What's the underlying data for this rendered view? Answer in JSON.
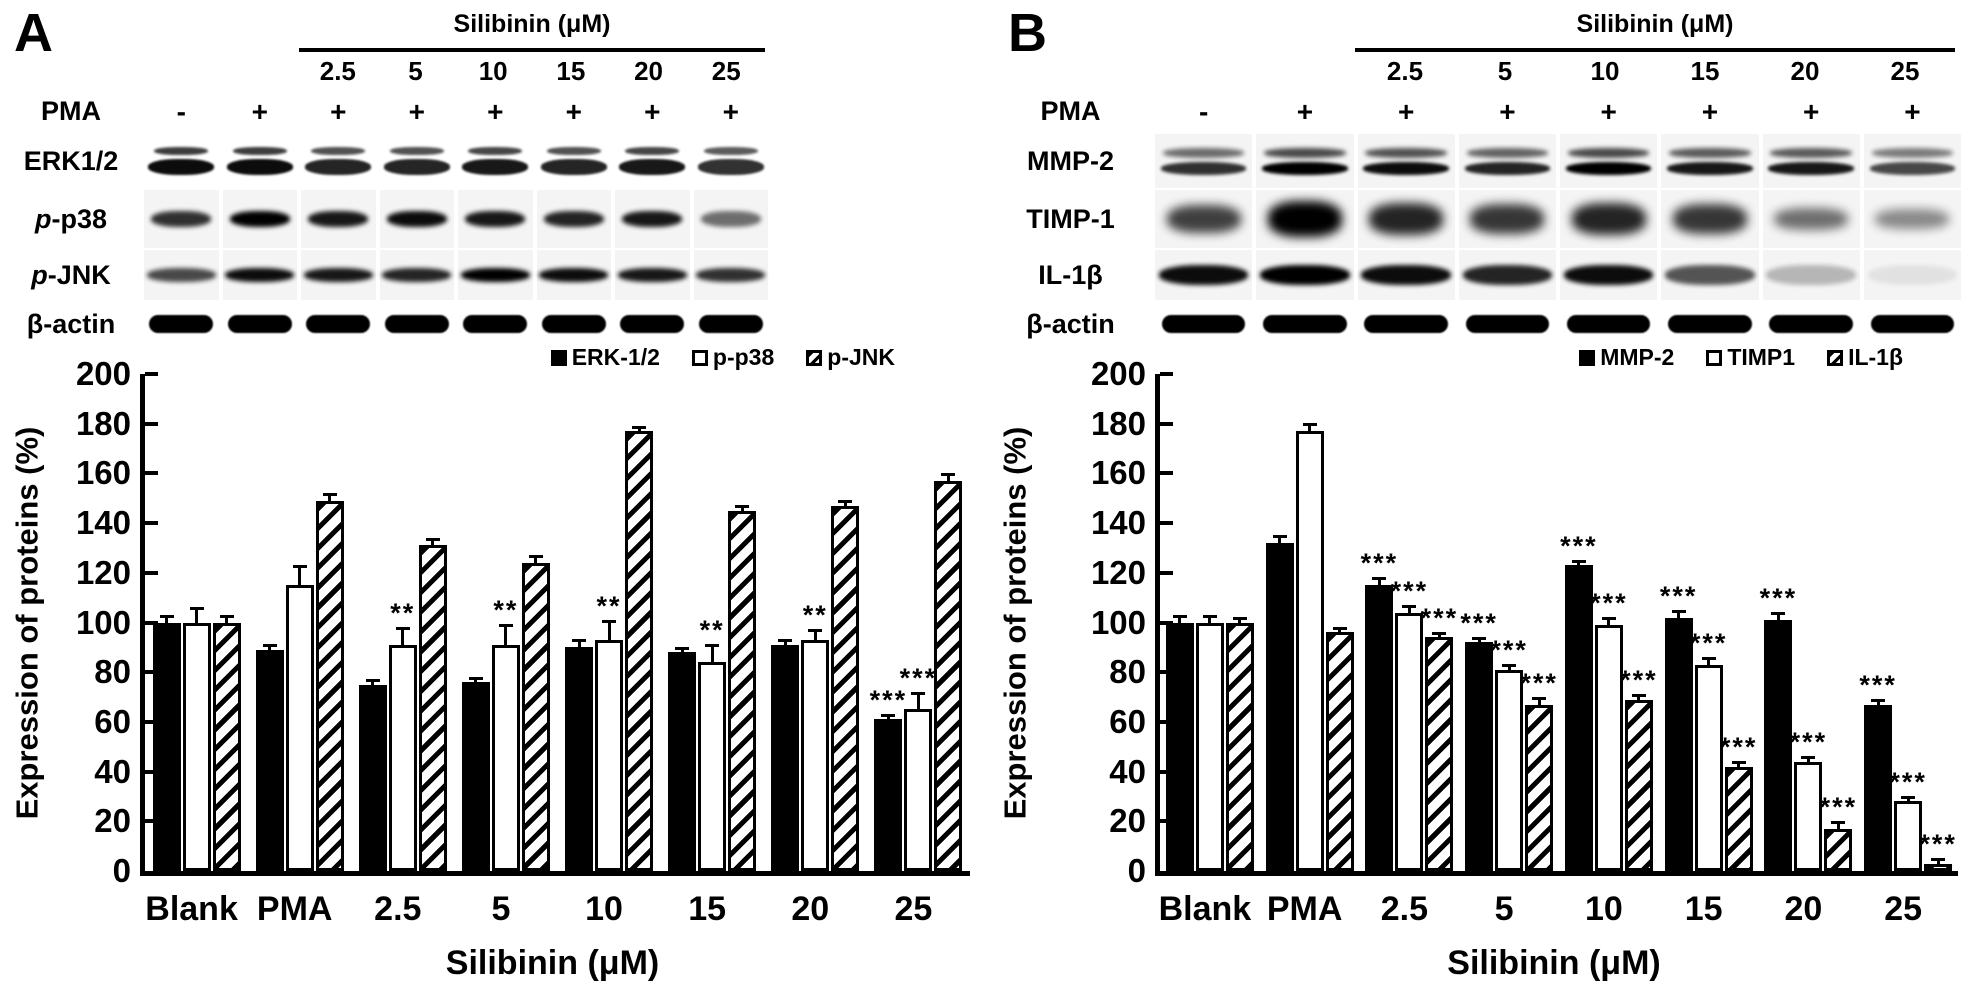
{
  "panels": [
    {
      "label": "A",
      "blot": {
        "treatment_header": "Silibinin (μM)",
        "concentrations": [
          "2.5",
          "5",
          "10",
          "15",
          "20",
          "25"
        ],
        "pma_label": "PMA",
        "pma_signs": [
          "-",
          "+",
          "+",
          "+",
          "+",
          "+",
          "+",
          "+"
        ],
        "rows": [
          {
            "prefix": "",
            "rest": "ERK1/2",
            "style": "double",
            "intensities": [
              0.95,
              0.95,
              0.85,
              0.85,
              0.9,
              0.85,
              0.9,
              0.8
            ]
          },
          {
            "prefix": "p",
            "rest": "-p38",
            "style": "fuzzy",
            "intensities": [
              0.8,
              1,
              0.9,
              0.95,
              0.9,
              0.85,
              0.9,
              0.55
            ]
          },
          {
            "prefix": "p",
            "rest": "-JNK",
            "style": "fuzzy-wide",
            "intensities": [
              0.7,
              0.95,
              0.9,
              0.85,
              1,
              0.95,
              0.9,
              0.8
            ]
          },
          {
            "prefix": "",
            "rest": "β-actin",
            "style": "solid",
            "intensities": [
              1,
              1,
              1,
              1,
              1,
              1,
              1,
              1
            ]
          }
        ]
      }
    },
    {
      "label": "B",
      "blot": {
        "treatment_header": "Silibinin (μM)",
        "concentrations": [
          "2.5",
          "5",
          "10",
          "15",
          "20",
          "25"
        ],
        "pma_label": "PMA",
        "pma_signs": [
          "-",
          "+",
          "+",
          "+",
          "+",
          "+",
          "+",
          "+"
        ],
        "rows": [
          {
            "prefix": "",
            "rest": "MMP-2",
            "style": "double-fuzzy",
            "intensities": [
              0.8,
              1,
              0.95,
              0.85,
              1,
              0.9,
              0.9,
              0.7
            ]
          },
          {
            "prefix": "",
            "rest": "TIMP-1",
            "style": "blob",
            "intensities": [
              0.65,
              1,
              0.8,
              0.7,
              0.8,
              0.7,
              0.4,
              0.25
            ]
          },
          {
            "prefix": "",
            "rest": "IL-1β",
            "style": "thick-fuzzy",
            "intensities": [
              0.95,
              1,
              0.95,
              0.85,
              0.95,
              0.65,
              0.25,
              0.07
            ]
          },
          {
            "prefix": "",
            "rest": "β-actin",
            "style": "solid",
            "intensities": [
              1,
              1,
              1,
              1,
              1,
              1,
              1,
              1
            ]
          }
        ]
      }
    }
  ],
  "chart_data": [
    {
      "type": "bar",
      "panel": "A",
      "title": "",
      "categories": [
        "Blank",
        "PMA",
        "2.5",
        "5",
        "10",
        "15",
        "20",
        "25"
      ],
      "series": [
        {
          "name": "ERK-1/2",
          "pattern": "filled",
          "values": [
            100,
            89,
            75,
            76,
            90,
            88,
            91,
            61
          ],
          "errors": [
            2,
            1,
            1,
            1,
            2,
            1,
            1,
            1
          ],
          "sig": [
            "",
            "",
            "",
            "",
            "",
            "",
            "",
            "***"
          ]
        },
        {
          "name": "p-p38",
          "pattern": "open",
          "values": [
            100,
            115,
            91,
            91,
            93,
            84,
            93,
            65
          ],
          "errors": [
            5,
            7,
            6,
            7,
            7,
            6,
            3,
            6
          ],
          "sig": [
            "",
            "",
            "**",
            "**",
            "**",
            "**",
            "**",
            "***"
          ]
        },
        {
          "name": "p-JNK",
          "pattern": "hatched",
          "values": [
            100,
            149,
            131,
            124,
            177,
            145,
            147,
            157
          ],
          "errors": [
            2,
            2,
            2,
            2,
            1,
            1,
            1,
            2
          ],
          "sig": [
            "",
            "",
            "",
            "",
            "",
            "",
            "",
            ""
          ]
        }
      ],
      "ylabel": "Expression of proteins (%)",
      "xlabel": "Silibinin (μM)",
      "ylim": [
        0,
        200
      ],
      "ytick_step": 20,
      "grid": false,
      "legend_position": "top-right",
      "bar_colors": {
        "filled": "#000000",
        "open": "#ffffff",
        "hatched": "diagonal-stripes"
      }
    },
    {
      "type": "bar",
      "panel": "B",
      "title": "",
      "categories": [
        "Blank",
        "PMA",
        "2.5",
        "5",
        "10",
        "15",
        "20",
        "25"
      ],
      "series": [
        {
          "name": "MMP-2",
          "pattern": "filled",
          "values": [
            100,
            132,
            115,
            92,
            123,
            102,
            101,
            67
          ],
          "errors": [
            2,
            2,
            2,
            1,
            1,
            2,
            2,
            1
          ],
          "sig": [
            "",
            "",
            "***",
            "***",
            "***",
            "***",
            "***",
            "***"
          ]
        },
        {
          "name": "TIMP1",
          "pattern": "open",
          "values": [
            100,
            177,
            104,
            81,
            99,
            83,
            44,
            28
          ],
          "errors": [
            2,
            2,
            2,
            1,
            2,
            2,
            1,
            1
          ],
          "sig": [
            "",
            "",
            "***",
            "***",
            "***",
            "***",
            "***",
            "***"
          ]
        },
        {
          "name": "IL-1β",
          "pattern": "hatched",
          "values": [
            100,
            96,
            94,
            67,
            69,
            42,
            17,
            3
          ],
          "errors": [
            1,
            1,
            1,
            2,
            1,
            1,
            2,
            1
          ],
          "sig": [
            "",
            "",
            "***",
            "***",
            "***",
            "***",
            "***",
            "***"
          ]
        }
      ],
      "ylabel": "Expression of proteins (%)",
      "xlabel": "Silibinin (μM)",
      "ylim": [
        0,
        200
      ],
      "ytick_step": 20,
      "grid": false,
      "legend_position": "top-right",
      "bar_colors": {
        "filled": "#000000",
        "open": "#ffffff",
        "hatched": "diagonal-stripes"
      }
    }
  ]
}
